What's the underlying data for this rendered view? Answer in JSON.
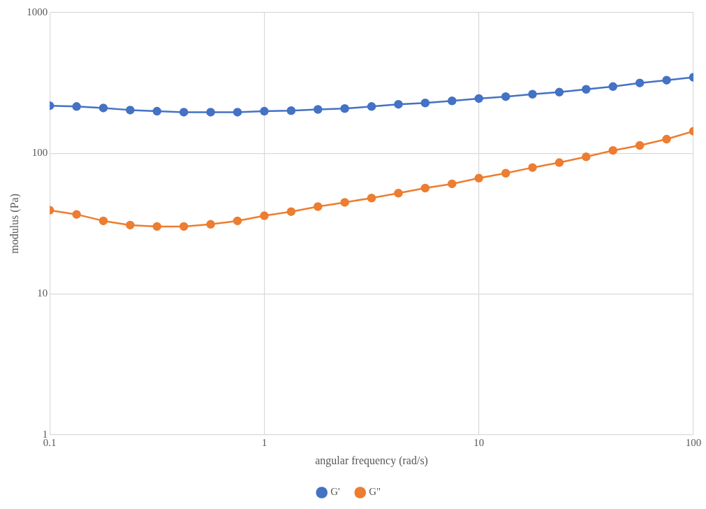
{
  "chart_data": {
    "type": "line",
    "xlabel": "angular frequency (rad/s)",
    "ylabel": "modulus (Pa)",
    "x": [
      0.1,
      0.1334,
      0.1778,
      0.2371,
      0.3162,
      0.4217,
      0.5623,
      0.7499,
      1,
      1.334,
      1.778,
      2.371,
      3.162,
      4.217,
      5.623,
      7.499,
      10,
      13.34,
      17.78,
      23.71,
      31.62,
      42.17,
      56.23,
      74.99,
      100
    ],
    "series": [
      {
        "name": "G'",
        "color": "#4472c4",
        "values": [
          218,
          215,
          210,
          203,
          199,
          196,
          196,
          196,
          199,
          201,
          205,
          208,
          215,
          223,
          228,
          236,
          245,
          253,
          263,
          272,
          285,
          298,
          316,
          331,
          347
        ]
      },
      {
        "name": "G\"",
        "color": "#ed7d31",
        "values": [
          39.4,
          36.8,
          33.1,
          30.9,
          30.2,
          30.2,
          31.3,
          33.1,
          36,
          38.5,
          41.8,
          44.8,
          48.1,
          52.1,
          56.6,
          60.7,
          66.6,
          72.2,
          79.2,
          85.9,
          94.4,
          104.8,
          113.7,
          126,
          143.5
        ]
      }
    ],
    "log": "xy",
    "xlim": [
      0.1,
      100
    ],
    "xticks": [
      0.1,
      1,
      10,
      100
    ],
    "ylim": [
      1,
      1000
    ],
    "yticks": [
      1,
      10,
      100,
      1000
    ],
    "grid": true,
    "legend": "bottom",
    "marker": "circle",
    "line_style": "solid"
  }
}
